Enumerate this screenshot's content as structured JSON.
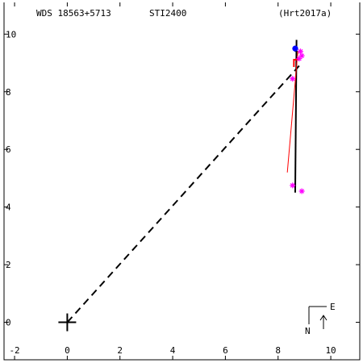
{
  "chart_data": {
    "type": "scatter",
    "header": {
      "wds": "WDS 18563+5713",
      "discoverer": "STI2400",
      "reference": "(Hrt2017a)"
    },
    "xlim": [
      -2.4,
      11.1
    ],
    "ylim": [
      -1.3,
      11.1
    ],
    "x_ticks": [
      -2,
      0,
      2,
      4,
      6,
      8,
      10
    ],
    "y_ticks": [
      0,
      2,
      4,
      6,
      8,
      10
    ],
    "x_tick_labels": [
      "-2",
      "0",
      "2",
      "4",
      "6",
      "8",
      "10"
    ],
    "y_tick_labels": [
      "0",
      "2",
      "4",
      "6",
      "8",
      "10"
    ],
    "primary": {
      "x": 0,
      "y": 0
    },
    "dashed_to": {
      "x": 8.8,
      "y": 8.9
    },
    "orbit_track": [
      {
        "x": 8.65,
        "y": 4.5
      },
      {
        "x": 8.7,
        "y": 9.8
      }
    ],
    "orbit_tick": {
      "x": 8.72,
      "y": 9.4
    },
    "residual_line": [
      {
        "x": 8.35,
        "y": 5.2
      },
      {
        "x": 8.75,
        "y": 9.4
      }
    ],
    "observations_magenta": [
      {
        "x": 8.55,
        "y": 4.75
      },
      {
        "x": 8.9,
        "y": 4.55
      },
      {
        "x": 8.55,
        "y": 8.45
      },
      {
        "x": 8.8,
        "y": 9.15
      },
      {
        "x": 8.85,
        "y": 9.4
      },
      {
        "x": 8.9,
        "y": 9.25
      }
    ],
    "latest_measure": {
      "x": 8.65,
      "y": 9.5
    },
    "flag_point": {
      "x": 8.6,
      "y": 9.0
    },
    "compass": {
      "e_label": "E",
      "n_label": "N"
    },
    "colors": {
      "axes": "#000000",
      "observation": "#ff00ff",
      "residual": "#ff0000",
      "latest": "#0000ff",
      "orbit": "#000000"
    }
  }
}
